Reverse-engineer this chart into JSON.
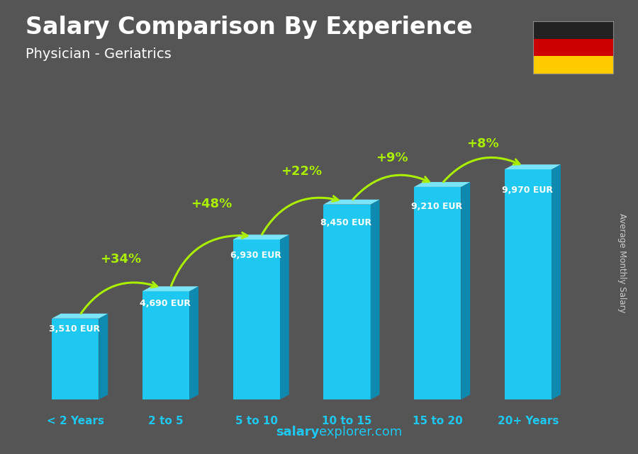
{
  "title": "Salary Comparison By Experience",
  "subtitle": "Physician - Geriatrics",
  "categories": [
    "< 2 Years",
    "2 to 5",
    "5 to 10",
    "10 to 15",
    "15 to 20",
    "20+ Years"
  ],
  "values": [
    3510,
    4690,
    6930,
    8450,
    9210,
    9970
  ],
  "labels": [
    "3,510 EUR",
    "4,690 EUR",
    "6,930 EUR",
    "8,450 EUR",
    "9,210 EUR",
    "9,970 EUR"
  ],
  "pct_changes": [
    "+34%",
    "+48%",
    "+22%",
    "+9%",
    "+8%"
  ],
  "bar_color_face": "#1ec8f0",
  "bar_color_dark": "#0e8ab0",
  "bar_color_top": "#7ae4f8",
  "bg_color": "#555555",
  "title_color": "#ffffff",
  "subtitle_color": "#ffffff",
  "label_color": "#ffffff",
  "xlabel_color": "#1ec8f0",
  "pct_color": "#aaee00",
  "ylabel_text": "Average Monthly Salary",
  "ylim": [
    0,
    11800
  ],
  "flag_colors": [
    "#222222",
    "#CC0000",
    "#FFCC00"
  ],
  "footer_salary_color": "#1ec8f0",
  "footer_explorer_color": "#1ec8f0",
  "footer_com_color": "#1ec8f0"
}
